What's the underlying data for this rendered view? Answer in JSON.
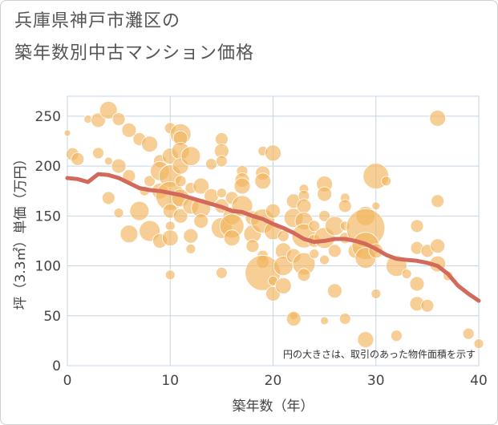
{
  "title": "兵庫県神戸市灘区の築年数別中古マンション価格",
  "title_line1": "兵庫県神戸市灘区の",
  "title_line2": "築年数別中古マンション価格",
  "note": "円の大きさは、取引のあった物件面積を示す",
  "colors": {
    "bubble": "#f2b65e",
    "line": "#d2695a",
    "grid": "#c8d4e3",
    "axis": "#444444"
  },
  "chart_data": {
    "type": "scatter",
    "xlabel": "築年数（年）",
    "ylabel": "坪（3.3㎡）単価（万円）",
    "xlim": [
      0,
      40
    ],
    "ylim": [
      0,
      270
    ],
    "xticks": [
      0,
      10,
      20,
      30,
      40
    ],
    "yticks": [
      0,
      50,
      100,
      150,
      200,
      250
    ],
    "grid": true,
    "bubbles": [
      {
        "x": 0,
        "y": 233,
        "s": 4
      },
      {
        "x": 0.5,
        "y": 212,
        "s": 8
      },
      {
        "x": 1,
        "y": 207,
        "s": 8
      },
      {
        "x": 2,
        "y": 247,
        "s": 5
      },
      {
        "x": 3,
        "y": 246,
        "s": 9
      },
      {
        "x": 3,
        "y": 213,
        "s": 7
      },
      {
        "x": 4,
        "y": 256,
        "s": 11
      },
      {
        "x": 4,
        "y": 205,
        "s": 5
      },
      {
        "x": 5,
        "y": 247,
        "s": 8
      },
      {
        "x": 6,
        "y": 236,
        "s": 9
      },
      {
        "x": 7,
        "y": 227,
        "s": 8
      },
      {
        "x": 8,
        "y": 222,
        "s": 10
      },
      {
        "x": 5,
        "y": 200,
        "s": 9
      },
      {
        "x": 4,
        "y": 168,
        "s": 8
      },
      {
        "x": 5,
        "y": 153,
        "s": 6
      },
      {
        "x": 6,
        "y": 190,
        "s": 8
      },
      {
        "x": 7,
        "y": 155,
        "s": 12
      },
      {
        "x": 6,
        "y": 132,
        "s": 11
      },
      {
        "x": 7.5,
        "y": 175,
        "s": 6
      },
      {
        "x": 8,
        "y": 185,
        "s": 7
      },
      {
        "x": 9,
        "y": 205,
        "s": 8
      },
      {
        "x": 9,
        "y": 195,
        "s": 12
      },
      {
        "x": 9,
        "y": 175,
        "s": 10
      },
      {
        "x": 8,
        "y": 135,
        "s": 13
      },
      {
        "x": 9,
        "y": 125,
        "s": 9
      },
      {
        "x": 10,
        "y": 238,
        "s": 7
      },
      {
        "x": 10,
        "y": 210,
        "s": 10
      },
      {
        "x": 10,
        "y": 190,
        "s": 14
      },
      {
        "x": 10,
        "y": 170,
        "s": 18
      },
      {
        "x": 10,
        "y": 155,
        "s": 9
      },
      {
        "x": 11,
        "y": 232,
        "s": 13
      },
      {
        "x": 11,
        "y": 228,
        "s": 9
      },
      {
        "x": 11,
        "y": 215,
        "s": 11
      },
      {
        "x": 11,
        "y": 200,
        "s": 10
      },
      {
        "x": 11,
        "y": 185,
        "s": 7
      },
      {
        "x": 11,
        "y": 168,
        "s": 11
      },
      {
        "x": 11,
        "y": 150,
        "s": 9
      },
      {
        "x": 12,
        "y": 210,
        "s": 12
      },
      {
        "x": 12,
        "y": 178,
        "s": 7
      },
      {
        "x": 12,
        "y": 160,
        "s": 10
      },
      {
        "x": 12,
        "y": 130,
        "s": 9
      },
      {
        "x": 12,
        "y": 117,
        "s": 6
      },
      {
        "x": 10,
        "y": 140,
        "s": 6
      },
      {
        "x": 10,
        "y": 128,
        "s": 10
      },
      {
        "x": 10,
        "y": 91,
        "s": 6
      },
      {
        "x": 13,
        "y": 180,
        "s": 10
      },
      {
        "x": 13,
        "y": 158,
        "s": 12
      },
      {
        "x": 13,
        "y": 145,
        "s": 9
      },
      {
        "x": 14,
        "y": 202,
        "s": 7
      },
      {
        "x": 14,
        "y": 170,
        "s": 9
      },
      {
        "x": 15,
        "y": 227,
        "s": 8
      },
      {
        "x": 15,
        "y": 215,
        "s": 9
      },
      {
        "x": 15,
        "y": 205,
        "s": 7
      },
      {
        "x": 15,
        "y": 173,
        "s": 6
      },
      {
        "x": 15,
        "y": 160,
        "s": 9
      },
      {
        "x": 15,
        "y": 138,
        "s": 13
      },
      {
        "x": 15,
        "y": 93,
        "s": 7
      },
      {
        "x": 16,
        "y": 168,
        "s": 8
      },
      {
        "x": 16,
        "y": 150,
        "s": 11
      },
      {
        "x": 16,
        "y": 140,
        "s": 15
      },
      {
        "x": 16,
        "y": 128,
        "s": 10
      },
      {
        "x": 17,
        "y": 195,
        "s": 7
      },
      {
        "x": 17,
        "y": 186,
        "s": 9
      },
      {
        "x": 17,
        "y": 180,
        "s": 10
      },
      {
        "x": 17,
        "y": 160,
        "s": 13
      },
      {
        "x": 18,
        "y": 148,
        "s": 9
      },
      {
        "x": 18,
        "y": 132,
        "s": 11
      },
      {
        "x": 18,
        "y": 120,
        "s": 8
      },
      {
        "x": 19,
        "y": 215,
        "s": 6
      },
      {
        "x": 19,
        "y": 193,
        "s": 9
      },
      {
        "x": 19,
        "y": 185,
        "s": 10
      },
      {
        "x": 19,
        "y": 145,
        "s": 15
      },
      {
        "x": 19,
        "y": 110,
        "s": 7
      },
      {
        "x": 19,
        "y": 104,
        "s": 8
      },
      {
        "x": 19,
        "y": 93,
        "s": 22
      },
      {
        "x": 20,
        "y": 213,
        "s": 10
      },
      {
        "x": 20,
        "y": 155,
        "s": 9
      },
      {
        "x": 20,
        "y": 135,
        "s": 11
      },
      {
        "x": 20,
        "y": 85,
        "s": 6
      },
      {
        "x": 20,
        "y": 72,
        "s": 9
      },
      {
        "x": 21,
        "y": 130,
        "s": 7
      },
      {
        "x": 21,
        "y": 115,
        "s": 10
      },
      {
        "x": 21,
        "y": 100,
        "s": 12
      },
      {
        "x": 21,
        "y": 80,
        "s": 10
      },
      {
        "x": 22,
        "y": 165,
        "s": 9
      },
      {
        "x": 22,
        "y": 148,
        "s": 12
      },
      {
        "x": 22,
        "y": 110,
        "s": 9
      },
      {
        "x": 22,
        "y": 50,
        "s": 5
      },
      {
        "x": 22,
        "y": 47,
        "s": 9
      },
      {
        "x": 23,
        "y": 177,
        "s": 6
      },
      {
        "x": 23,
        "y": 170,
        "s": 7
      },
      {
        "x": 23,
        "y": 160,
        "s": 9
      },
      {
        "x": 23,
        "y": 145,
        "s": 11
      },
      {
        "x": 23,
        "y": 130,
        "s": 15
      },
      {
        "x": 23,
        "y": 102,
        "s": 14
      },
      {
        "x": 23,
        "y": 91,
        "s": 8
      },
      {
        "x": 24,
        "y": 140,
        "s": 7
      },
      {
        "x": 24,
        "y": 125,
        "s": 8
      },
      {
        "x": 24,
        "y": 112,
        "s": 6
      },
      {
        "x": 25,
        "y": 182,
        "s": 10
      },
      {
        "x": 25,
        "y": 172,
        "s": 9
      },
      {
        "x": 25,
        "y": 150,
        "s": 7
      },
      {
        "x": 25,
        "y": 128,
        "s": 13
      },
      {
        "x": 25,
        "y": 106,
        "s": 6
      },
      {
        "x": 25,
        "y": 45,
        "s": 5
      },
      {
        "x": 26,
        "y": 140,
        "s": 12
      },
      {
        "x": 26,
        "y": 115,
        "s": 8
      },
      {
        "x": 26,
        "y": 75,
        "s": 9
      },
      {
        "x": 27,
        "y": 168,
        "s": 6
      },
      {
        "x": 27,
        "y": 160,
        "s": 8
      },
      {
        "x": 27,
        "y": 140,
        "s": 6
      },
      {
        "x": 27,
        "y": 128,
        "s": 7
      },
      {
        "x": 27,
        "y": 47,
        "s": 7
      },
      {
        "x": 28,
        "y": 115,
        "s": 9
      },
      {
        "x": 29,
        "y": 150,
        "s": 12
      },
      {
        "x": 29,
        "y": 138,
        "s": 24
      },
      {
        "x": 29,
        "y": 120,
        "s": 17
      },
      {
        "x": 29,
        "y": 108,
        "s": 13
      },
      {
        "x": 29,
        "y": 26,
        "s": 10
      },
      {
        "x": 30,
        "y": 190,
        "s": 16
      },
      {
        "x": 30,
        "y": 160,
        "s": 5
      },
      {
        "x": 30,
        "y": 115,
        "s": 9
      },
      {
        "x": 30,
        "y": 72,
        "s": 6
      },
      {
        "x": 31,
        "y": 185,
        "s": 6
      },
      {
        "x": 32,
        "y": 100,
        "s": 13
      },
      {
        "x": 32,
        "y": 30,
        "s": 7
      },
      {
        "x": 33,
        "y": 92,
        "s": 6
      },
      {
        "x": 34,
        "y": 140,
        "s": 8
      },
      {
        "x": 34,
        "y": 118,
        "s": 8
      },
      {
        "x": 34,
        "y": 82,
        "s": 9
      },
      {
        "x": 34,
        "y": 62,
        "s": 9
      },
      {
        "x": 35,
        "y": 115,
        "s": 8
      },
      {
        "x": 35,
        "y": 60,
        "s": 8
      },
      {
        "x": 36,
        "y": 248,
        "s": 10
      },
      {
        "x": 36,
        "y": 165,
        "s": 8
      },
      {
        "x": 36,
        "y": 120,
        "s": 9
      },
      {
        "x": 36,
        "y": 102,
        "s": 10
      },
      {
        "x": 37,
        "y": 90,
        "s": 6
      },
      {
        "x": 39,
        "y": 32,
        "s": 7
      },
      {
        "x": 40,
        "y": 22,
        "s": 6
      }
    ],
    "trend": {
      "x": [
        0,
        1,
        2,
        3,
        4,
        5,
        6,
        7,
        8,
        9,
        10,
        11,
        12,
        13,
        14,
        15,
        16,
        17,
        18,
        19,
        20,
        21,
        22,
        23,
        24,
        25,
        26,
        27,
        28,
        29,
        30,
        31,
        32,
        33,
        34,
        35,
        36,
        37,
        38,
        39,
        40
      ],
      "y": [
        188,
        187,
        184,
        192,
        191,
        188,
        183,
        178,
        176,
        175,
        173,
        171,
        168,
        165,
        162,
        159,
        155,
        154,
        150,
        147,
        142,
        138,
        133,
        127,
        124,
        125,
        127,
        127,
        125,
        122,
        117,
        111,
        107,
        106,
        105,
        103,
        100,
        92,
        80,
        72,
        65
      ]
    }
  }
}
